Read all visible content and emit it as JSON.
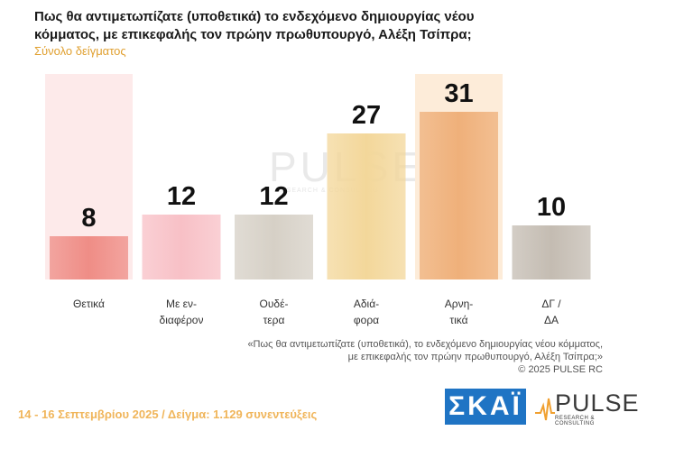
{
  "title": "Πως θα αντιμετωπίζατε (υποθετικά) το ενδεχόμενο δημιουργίας νέου κόμματος, με επικεφαλής τον πρώην πρωθυπουργό, Αλέξη Τσίπρα;",
  "subtitle": "Σύνολο δείγματος",
  "quote_line1": "«Πως θα αντιμετωπίζατε (υποθετικά), το ενδεχόμενο δημιουργίας νέου κόμματος,",
  "quote_line2": "με επικεφαλής τον πρώην πρωθυπουργό, Αλέξη Τσίπρα;»",
  "copyright": "©  2025  PULSE RC",
  "footer": "14 - 16 Σεπτεμβρίου 2025  /  Δείγμα:  1.129 συνεντεύξεις",
  "logo_skai": "ΣΚΑΪ",
  "logo_pulse": "PULSE",
  "logo_pulse_sub": "RESEARCH & CONSULTING",
  "watermark": "PULSE",
  "watermark_sub": "RESEARCH & CONSULTING",
  "chart_data": {
    "type": "bar",
    "categories": [
      [
        "Θετικά"
      ],
      [
        "Με εν-",
        "διαφέρον"
      ],
      [
        "Ουδέ-",
        "τερα"
      ],
      [
        "Αδιά-",
        "φορα"
      ],
      [
        "Αρνη-",
        "τικά"
      ],
      [
        "ΔΓ /",
        "ΔΑ"
      ]
    ],
    "values": [
      8,
      12,
      12,
      27,
      31,
      10
    ],
    "colors": [
      "#ef8d86",
      "#f8c0c6",
      "#d6d0c6",
      "#f3d79a",
      "#efb07a",
      "#c4bcb2"
    ],
    "highlight_columns": [
      0,
      4
    ],
    "highlight_colors": [
      "#fdeaea",
      "#fdecd9"
    ],
    "ylim": [
      0,
      40
    ]
  }
}
